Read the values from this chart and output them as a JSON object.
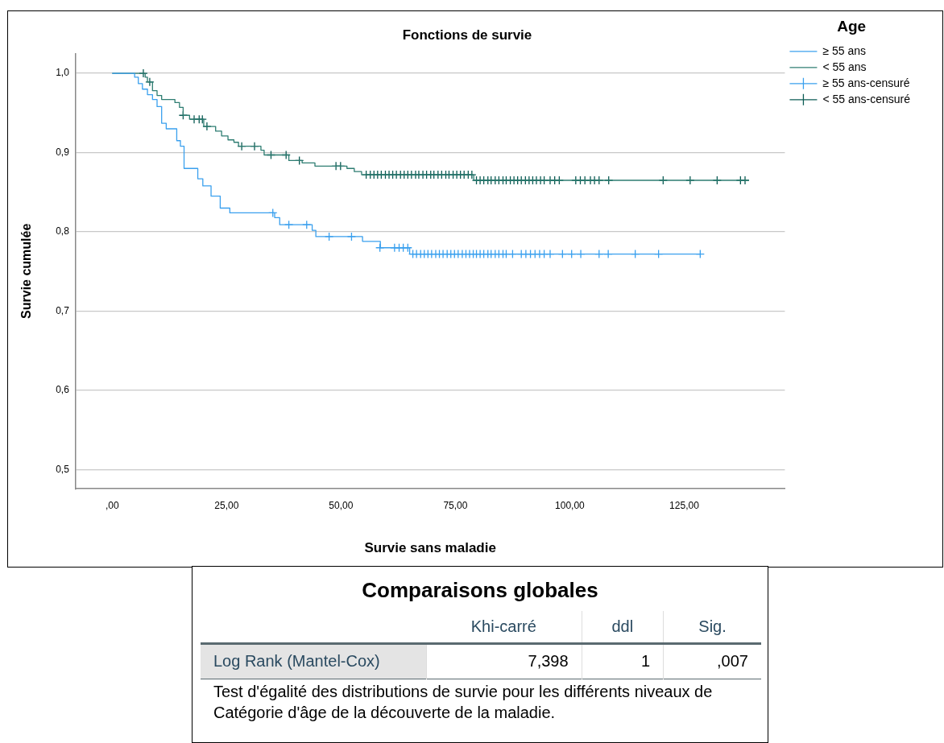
{
  "chart_data": [
    {
      "type": "step",
      "title": "Fonctions de survie",
      "xlabel": "Survie sans maladie",
      "ylabel": "Survie cumulée",
      "legend_title": "Age",
      "legend": "top right",
      "grid": "y",
      "xlim": [
        -8,
        147
      ],
      "ylim": [
        0.476,
        1.025
      ],
      "xticks": [
        {
          "value": 0,
          "label": ",00"
        },
        {
          "value": 25,
          "label": "25,00"
        },
        {
          "value": 50,
          "label": "50,00"
        },
        {
          "value": 75,
          "label": "75,00"
        },
        {
          "value": 100,
          "label": "100,00"
        },
        {
          "value": 125,
          "label": "125,00"
        }
      ],
      "yticks": [
        {
          "value": 0.5,
          "label": "0,5"
        },
        {
          "value": 0.6,
          "label": "0,6"
        },
        {
          "value": 0.7,
          "label": "0,7"
        },
        {
          "value": 0.8,
          "label": "0,8"
        },
        {
          "value": 0.9,
          "label": "0,9"
        },
        {
          "value": 1.0,
          "label": "1,0"
        }
      ],
      "series": [
        {
          "name": "≥ 55 ans",
          "type": "step",
          "marker": "none",
          "color": "#3aa0ee",
          "x": [
            0,
            4.9,
            5.7,
            6.6,
            7.7,
            8.8,
            9.8,
            10.8,
            11.8,
            14.1,
            14.9,
            15.7,
            18.7,
            19.8,
            21.6,
            23.6,
            25.7,
            35.5,
            36.6,
            43.7,
            44.5,
            54.7,
            58.6,
            65.0,
            128.5
          ],
          "values": [
            1.0,
            0.995,
            0.987,
            0.98,
            0.973,
            0.967,
            0.958,
            0.937,
            0.93,
            0.915,
            0.908,
            0.88,
            0.867,
            0.858,
            0.845,
            0.83,
            0.824,
            0.818,
            0.809,
            0.802,
            0.794,
            0.788,
            0.78,
            0.772,
            0.772
          ]
        },
        {
          "name": "< 55 ans",
          "type": "step",
          "marker": "none",
          "color": "#2e7d72",
          "x": [
            0,
            7.2,
            7.7,
            8.8,
            9.8,
            10.8,
            13.7,
            14.7,
            15.5,
            16.9,
            20.0,
            22.6,
            23.9,
            25.3,
            26.6,
            27.6,
            32.5,
            33.2,
            38.6,
            41.5,
            44.3,
            51.3,
            52.9,
            54.5,
            79.0,
            139.1
          ],
          "values": [
            1.0,
            0.995,
            0.989,
            0.978,
            0.972,
            0.967,
            0.963,
            0.957,
            0.947,
            0.942,
            0.933,
            0.927,
            0.921,
            0.916,
            0.913,
            0.908,
            0.903,
            0.897,
            0.89,
            0.887,
            0.883,
            0.88,
            0.876,
            0.872,
            0.865,
            0.865
          ]
        },
        {
          "name": "≥ 55 ans-censuré",
          "type": "scatter",
          "marker": "cross",
          "color": "#3aa0ee",
          "x": [
            35.1,
            38.6,
            42.5,
            47.4,
            52.3,
            58.5,
            61.7,
            62.7,
            63.6,
            64.6,
            65.7,
            66.5,
            67.4,
            68.2,
            69.0,
            69.8,
            70.7,
            71.5,
            72.3,
            73.2,
            74.0,
            74.8,
            75.6,
            76.5,
            77.3,
            78.1,
            78.9,
            79.6,
            80.4,
            81.2,
            82.1,
            82.8,
            83.7,
            84.5,
            85.4,
            86.1,
            87.5,
            89.4,
            90.4,
            91.4,
            92.4,
            93.4,
            94.4,
            95.7,
            98.4,
            100.4,
            102.4,
            106.4,
            108.4,
            114.3,
            119.4,
            128.5
          ],
          "values": [
            0.824,
            0.809,
            0.809,
            0.794,
            0.794,
            0.78,
            0.78,
            0.78,
            0.78,
            0.78,
            0.772,
            0.772,
            0.772,
            0.772,
            0.772,
            0.772,
            0.772,
            0.772,
            0.772,
            0.772,
            0.772,
            0.772,
            0.772,
            0.772,
            0.772,
            0.772,
            0.772,
            0.772,
            0.772,
            0.772,
            0.772,
            0.772,
            0.772,
            0.772,
            0.772,
            0.772,
            0.772,
            0.772,
            0.772,
            0.772,
            0.772,
            0.772,
            0.772,
            0.772,
            0.772,
            0.772,
            0.772,
            0.772,
            0.772,
            0.772,
            0.772,
            0.772
          ]
        },
        {
          "name": "< 55 ans-censuré",
          "type": "scatter",
          "marker": "cross",
          "color": "#0d5c55",
          "x": [
            6.8,
            8.2,
            15.5,
            17.9,
            19.0,
            19.7,
            20.7,
            28.3,
            31.1,
            34.7,
            38.0,
            40.9,
            48.9,
            49.9,
            55.5,
            56.4,
            57.2,
            58.0,
            58.8,
            59.7,
            60.5,
            61.3,
            62.1,
            63.0,
            63.8,
            64.6,
            65.4,
            66.3,
            67.0,
            67.9,
            68.7,
            69.6,
            70.3,
            71.2,
            72.0,
            72.9,
            73.6,
            74.5,
            75.3,
            76.1,
            76.9,
            77.8,
            78.6,
            79.6,
            80.4,
            81.2,
            82.1,
            82.8,
            83.7,
            84.5,
            85.4,
            86.1,
            87.0,
            87.8,
            88.6,
            89.4,
            90.3,
            91.1,
            91.9,
            92.7,
            93.6,
            94.4,
            95.7,
            96.7,
            97.7,
            101.3,
            102.3,
            103.3,
            104.5,
            105.4,
            106.4,
            108.5,
            120.4,
            126.3,
            132.2,
            137.3,
            138.3
          ],
          "values": [
            1.0,
            0.989,
            0.947,
            0.942,
            0.942,
            0.942,
            0.933,
            0.908,
            0.908,
            0.897,
            0.897,
            0.89,
            0.883,
            0.883,
            0.872,
            0.872,
            0.872,
            0.872,
            0.872,
            0.872,
            0.872,
            0.872,
            0.872,
            0.872,
            0.872,
            0.872,
            0.872,
            0.872,
            0.872,
            0.872,
            0.872,
            0.872,
            0.872,
            0.872,
            0.872,
            0.872,
            0.872,
            0.872,
            0.872,
            0.872,
            0.872,
            0.872,
            0.872,
            0.865,
            0.865,
            0.865,
            0.865,
            0.865,
            0.865,
            0.865,
            0.865,
            0.865,
            0.865,
            0.865,
            0.865,
            0.865,
            0.865,
            0.865,
            0.865,
            0.865,
            0.865,
            0.865,
            0.865,
            0.865,
            0.865,
            0.865,
            0.865,
            0.865,
            0.865,
            0.865,
            0.865,
            0.865,
            0.865,
            0.865,
            0.865,
            0.865,
            0.865
          ]
        }
      ]
    },
    {
      "type": "other",
      "title": "Comparaisons globales",
      "annotations": [
        "Khi-carré",
        "ddl",
        "Sig.",
        "Log Rank (Mantel-Cox)",
        "7,398",
        "1",
        ",007",
        "Test d'égalité des distributions de survie pour les différents niveaux de Catégorie d'âge de la découverte de la maladie."
      ]
    }
  ]
}
